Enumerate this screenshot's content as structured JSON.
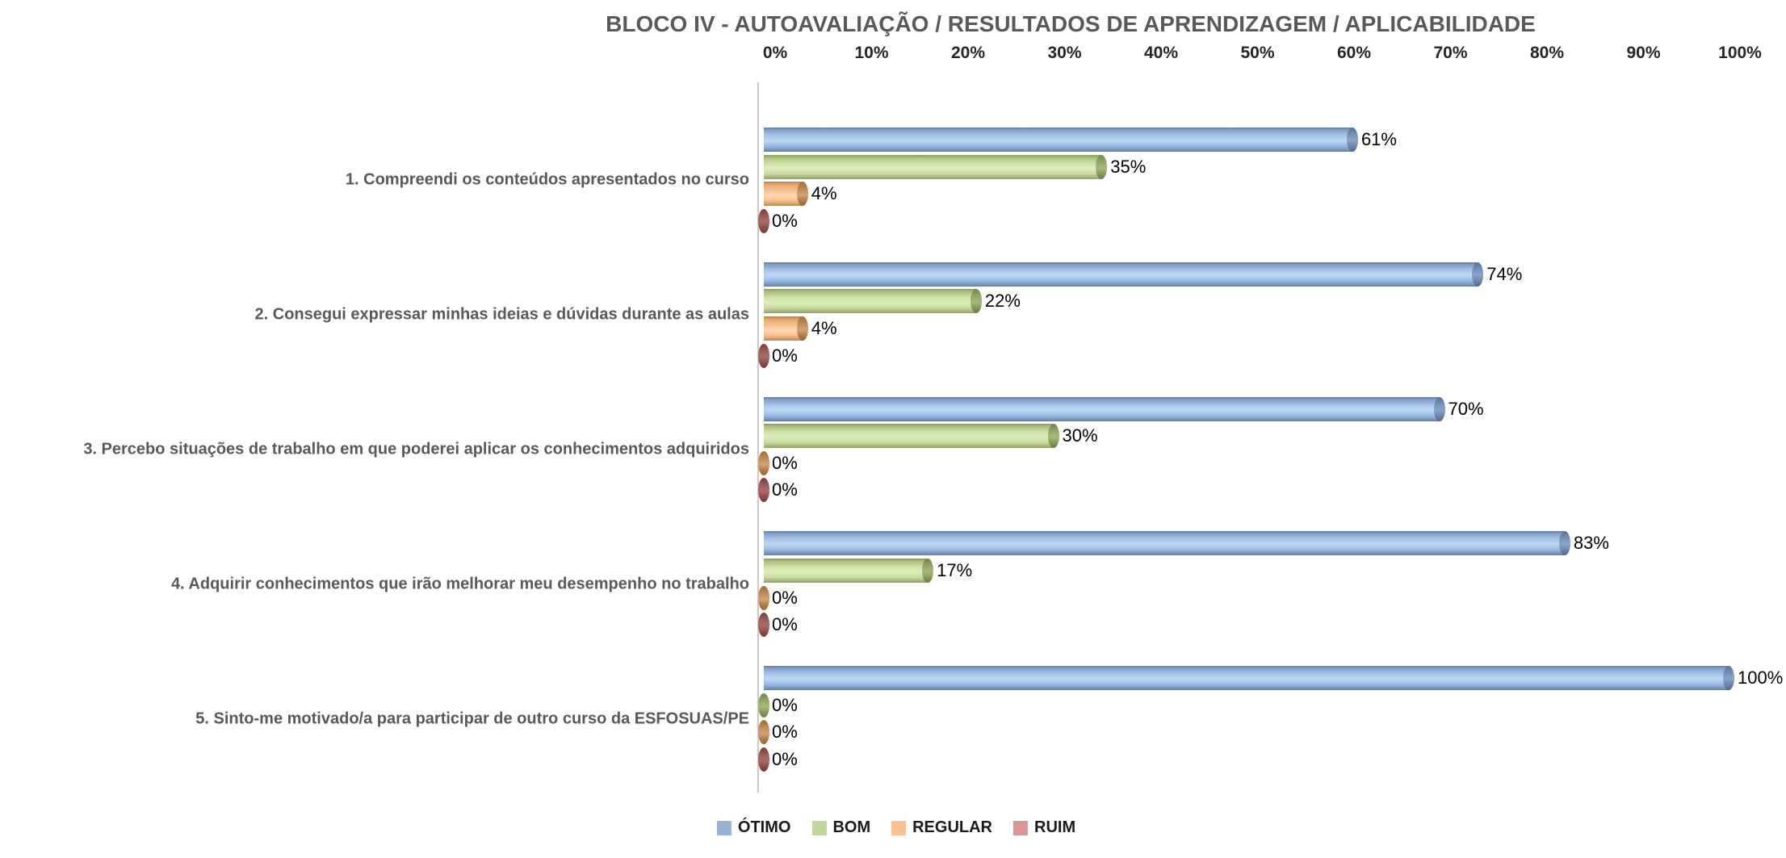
{
  "chart_data": {
    "type": "bar",
    "orientation": "horizontal",
    "title": "BLOCO IV - AUTOAVALIAÇÃO / RESULTADOS DE APRENDIZAGEM / APLICABILIDADE",
    "categories": [
      "1. Compreendi os conteúdos apresentados no curso",
      "2. Consegui expressar minhas ideias e dúvidas durante as aulas",
      "3. Percebo situações de trabalho em que poderei aplicar os conhecimentos adquiridos",
      "4. Adquirir conhecimentos que irão melhorar meu desempenho no trabalho",
      "5. Sinto-me motivado/a para participar de outro curso da ESFOSUAS/PE"
    ],
    "series": [
      {
        "name": "ÓTIMO",
        "color": "#95B3D7",
        "values": [
          61,
          74,
          70,
          83,
          100
        ]
      },
      {
        "name": "BOM",
        "color": "#C3D69B",
        "values": [
          35,
          22,
          30,
          17,
          0
        ]
      },
      {
        "name": "REGULAR",
        "color": "#FAC090",
        "values": [
          4,
          4,
          0,
          0,
          0
        ]
      },
      {
        "name": "RUIM",
        "color": "#D99694",
        "values": [
          0,
          0,
          0,
          0,
          0
        ]
      }
    ],
    "data_labels": [
      [
        "61%",
        "35%",
        "4%",
        "0%"
      ],
      [
        "74%",
        "22%",
        "4%",
        "0%"
      ],
      [
        "70%",
        "30%",
        "0%",
        "0%"
      ],
      [
        "83%",
        "17%",
        "0%",
        "0%"
      ],
      [
        "100%",
        "0%",
        "0%",
        "0%"
      ]
    ],
    "x_ticks": [
      "0%",
      "10%",
      "20%",
      "30%",
      "40%",
      "50%",
      "60%",
      "70%",
      "80%",
      "90%",
      "100%"
    ],
    "xlim": [
      0,
      100
    ],
    "grid": false,
    "legend_position": "bottom",
    "title_color": "#595959",
    "category_label_color": "#595959",
    "tick_label_color": "#262626",
    "data_label_color": "#000000",
    "axis_line_color": "#C9C9C9"
  }
}
